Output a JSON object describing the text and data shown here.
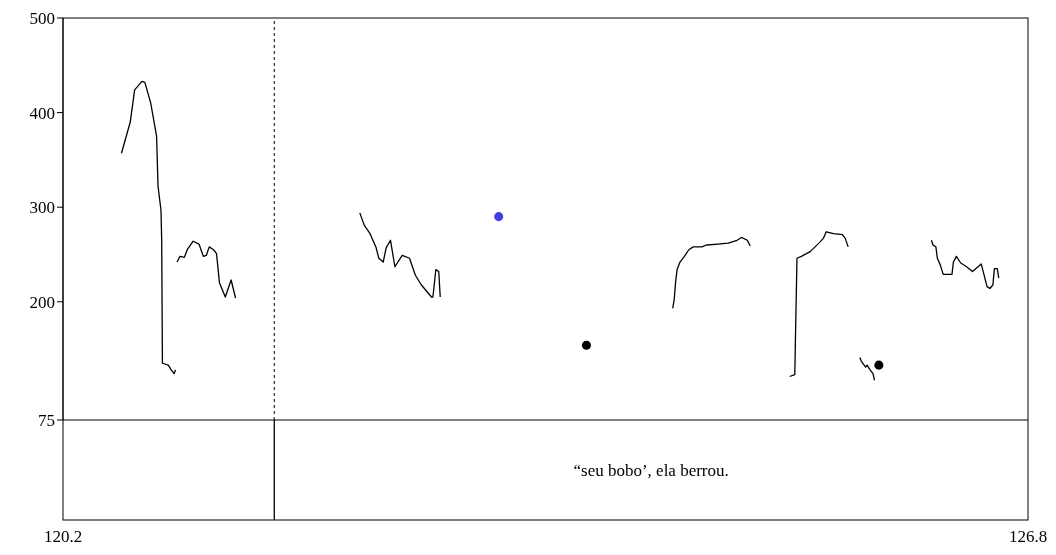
{
  "chart_data": {
    "type": "line",
    "xlim": [
      120.2,
      126.8
    ],
    "xticks": [
      120.2,
      126.8
    ],
    "ylim": [
      75,
      500
    ],
    "yticks": [
      75,
      200,
      300,
      400,
      500
    ],
    "ref_lines": [
      {
        "axis": "x",
        "value": 121.645,
        "line_style": "dashed",
        "color": "#000000"
      }
    ],
    "annotations": [
      "“seu bobo’, ela berrou."
    ],
    "series": [
      {
        "color": "#000000",
        "x": [
          120.6,
          120.66,
          120.69,
          120.74,
          120.76,
          120.8,
          120.84,
          120.85,
          120.87,
          120.875,
          120.88,
          120.92,
          120.94,
          120.96,
          120.97
        ],
        "values": [
          357,
          390,
          424,
          433,
          432,
          410,
          375,
          322,
          297,
          265,
          135,
          133,
          128,
          124,
          128
        ]
      },
      {
        "color": "#000000",
        "x": [
          120.98,
          121.0,
          121.03,
          121.05,
          121.09,
          121.13,
          121.16,
          121.18,
          121.2,
          121.23,
          121.25,
          121.27,
          121.31,
          121.35,
          121.38
        ],
        "values": [
          242,
          248,
          247,
          255,
          264,
          261,
          248,
          249,
          258,
          255,
          251,
          220,
          205,
          223,
          204
        ]
      },
      {
        "color": "#000000",
        "x": [
          122.23,
          122.26,
          122.3,
          122.34,
          122.36,
          122.39,
          122.41,
          122.44,
          122.47,
          122.52,
          122.57,
          122.61,
          122.65,
          122.72,
          122.73,
          122.75,
          122.77,
          122.78
        ],
        "values": [
          294,
          281,
          272,
          258,
          246,
          242,
          257,
          265,
          237,
          249,
          246,
          228,
          218,
          205,
          205,
          234,
          232,
          205
        ]
      },
      {
        "color": "#000000",
        "x": [
          124.37,
          124.38,
          124.39,
          124.4,
          124.42,
          124.45,
          124.48,
          124.51,
          124.57,
          124.6,
          124.68,
          124.75,
          124.81,
          124.84,
          124.88,
          124.9
        ],
        "values": [
          193,
          202,
          221,
          234,
          242,
          248,
          255,
          258,
          258,
          260,
          261,
          262,
          265,
          268,
          265,
          259
        ]
      },
      {
        "color": "#000000",
        "x": [
          125.17,
          125.205,
          125.21,
          125.22,
          125.25,
          125.31,
          125.37,
          125.4,
          125.42,
          125.47,
          125.53,
          125.55,
          125.57
        ],
        "values": [
          121,
          123,
          165,
          246,
          248,
          253,
          262,
          267,
          274,
          272,
          271,
          267,
          258
        ]
      },
      {
        "color": "#000000",
        "x": [
          125.65,
          125.66,
          125.69,
          125.7,
          125.72,
          125.74,
          125.75
        ],
        "values": [
          141,
          137,
          131,
          133,
          128,
          124,
          117
        ]
      },
      {
        "color": "#000000",
        "x": [
          126.14,
          126.15,
          126.17,
          126.18,
          126.2,
          126.22,
          126.28,
          126.29,
          126.31,
          126.34,
          126.38,
          126.42,
          126.48,
          126.52,
          126.54,
          126.56,
          126.57,
          126.59,
          126.6
        ],
        "values": [
          265,
          260,
          258,
          246,
          239,
          229,
          229,
          242,
          248,
          241,
          237,
          232,
          240,
          216,
          214,
          218,
          235,
          235,
          225
        ]
      },
      {
        "type": "scatter",
        "color": "#000000",
        "x": [
          123.78,
          125.78
        ],
        "values": [
          154,
          133
        ]
      },
      {
        "type": "scatter",
        "color": "#3f3fdf",
        "x": [
          123.18
        ],
        "values": [
          290
        ]
      }
    ]
  }
}
